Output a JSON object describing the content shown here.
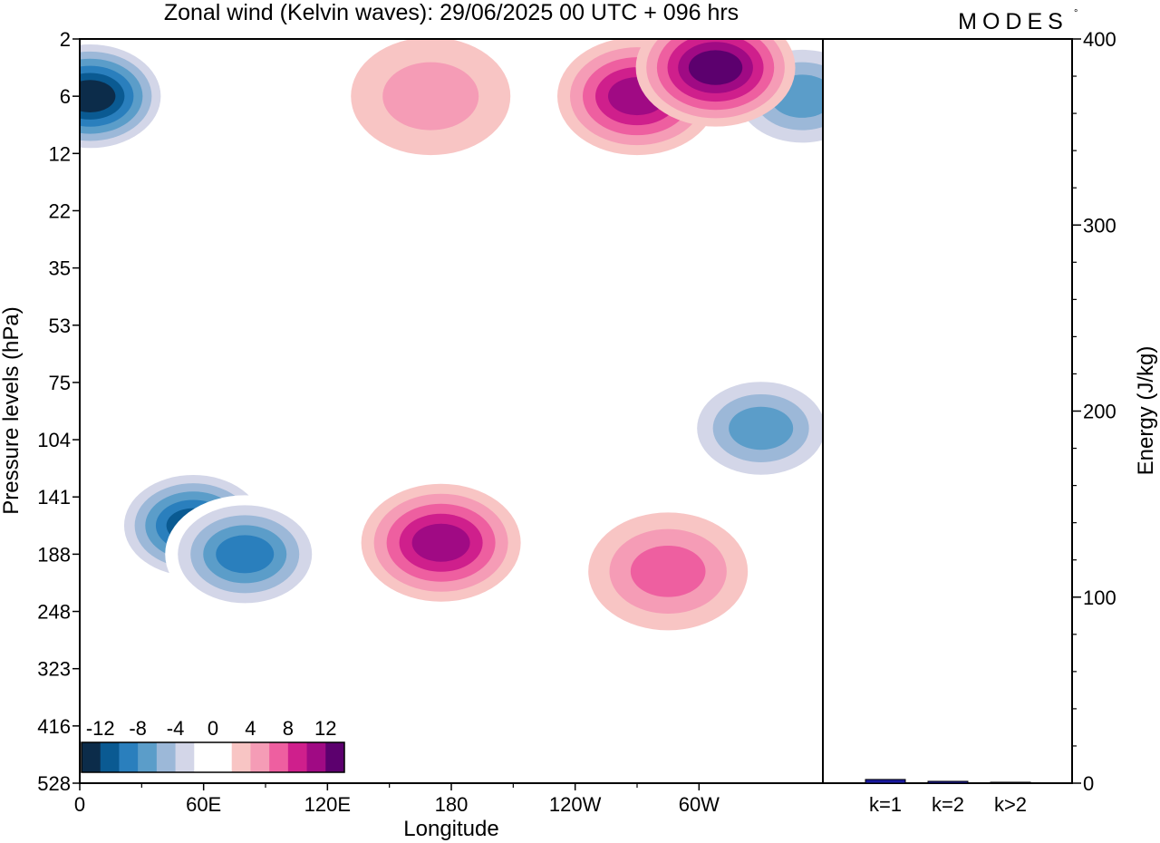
{
  "header": {
    "title": "Zonal wind (Kelvin waves):  29/06/2025  00 UTC  + 096 hrs",
    "brand": "MODES",
    "brand_mark": "°"
  },
  "chart_data": [
    {
      "type": "heatmap",
      "title": "Zonal wind (Kelvin waves):  29/06/2025  00 UTC  + 096 hrs",
      "xlabel": "Longitude",
      "ylabel": "Pressure levels (hPa)",
      "x_ticks": [
        "0",
        "60E",
        "120E",
        "180",
        "120W",
        "60W"
      ],
      "x_range": [
        0,
        360
      ],
      "y_ticks": [
        "2",
        "6",
        "12",
        "22",
        "35",
        "53",
        "75",
        "104",
        "141",
        "188",
        "248",
        "323",
        "416",
        "528"
      ],
      "y_scale": "level-index",
      "colorbar": {
        "labels": [
          "-12",
          "-8",
          "-4",
          "0",
          "4",
          "8",
          "12"
        ],
        "levels": [
          -14,
          -12,
          -10,
          -8,
          -6,
          -4,
          -2,
          2,
          4,
          6,
          8,
          10,
          12,
          14
        ],
        "colors": [
          "#0c2c4a",
          "#0a5a92",
          "#2a7fbd",
          "#5b9dc9",
          "#9cb8d8",
          "#d3d6e8",
          "#ffffff",
          "#ffffff",
          "#f8c5c4",
          "#f59cb6",
          "#ee5fa0",
          "#cf1f8c",
          "#a00a84",
          "#5c006e"
        ],
        "placement": "bottom-left"
      },
      "features": [
        {
          "sign": "negative",
          "lon": 5,
          "level": 1,
          "peak": -14
        },
        {
          "sign": "negative",
          "lon": 350,
          "level": 1,
          "peak": -8
        },
        {
          "sign": "positive",
          "lon": 170,
          "level": 1,
          "peak": 4
        },
        {
          "sign": "positive",
          "lon": 270,
          "level": 1,
          "peak": 10
        },
        {
          "sign": "positive",
          "lon": 308,
          "level": 0.5,
          "peak": 12
        },
        {
          "sign": "negative",
          "lon": 55,
          "level": 8.5,
          "peak": -12
        },
        {
          "sign": "negative",
          "lon": 80,
          "level": 9,
          "peak": -10
        },
        {
          "sign": "positive",
          "lon": 175,
          "level": 8.8,
          "peak": 10
        },
        {
          "sign": "positive",
          "lon": 285,
          "level": 9.3,
          "peak": 6
        },
        {
          "sign": "negative",
          "lon": 330,
          "level": 6.8,
          "peak": -8
        }
      ]
    },
    {
      "type": "bar",
      "categories": [
        "k=1",
        "k=2",
        "k>2"
      ],
      "values": [
        2,
        1,
        0.5
      ],
      "ylabel": "Energy (J/kg)",
      "y_ticks": [
        "0",
        "100",
        "200",
        "300",
        "400"
      ],
      "ylim": [
        0,
        400
      ],
      "bar_color": "#1a1aa0"
    }
  ]
}
